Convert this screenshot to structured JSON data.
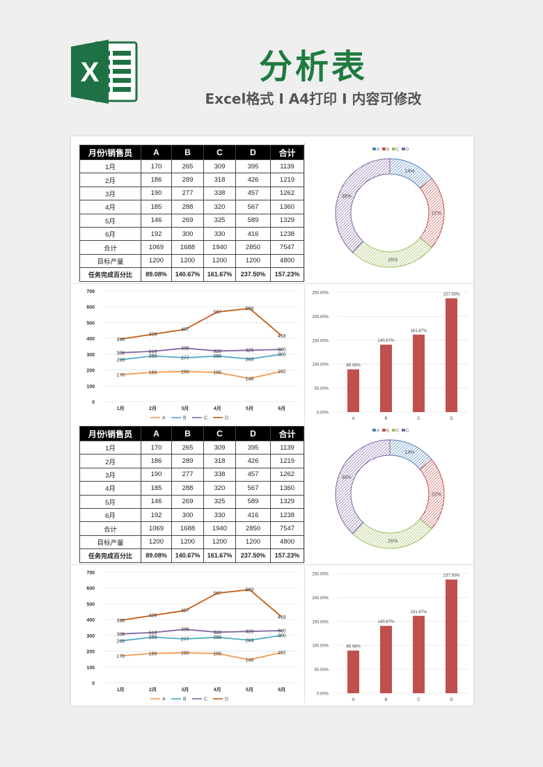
{
  "header": {
    "title": "分析表",
    "subtitle": "Excel格式 I A4打印 I 内容可修改",
    "logo_letter": "X",
    "accent": "#1f7a3e"
  },
  "table": {
    "columns": [
      "月份\\销售员",
      "A",
      "B",
      "C",
      "D",
      "合计"
    ],
    "rows": [
      [
        "1月",
        "170",
        "265",
        "309",
        "395",
        "1139"
      ],
      [
        "2月",
        "186",
        "289",
        "318",
        "426",
        "1219"
      ],
      [
        "3月",
        "190",
        "277",
        "338",
        "457",
        "1262"
      ],
      [
        "4月",
        "185",
        "288",
        "320",
        "567",
        "1360"
      ],
      [
        "5月",
        "146",
        "269",
        "325",
        "589",
        "1329"
      ],
      [
        "6月",
        "192",
        "300",
        "330",
        "416",
        "1238"
      ],
      [
        "合计",
        "1069",
        "1688",
        "1940",
        "2850",
        "7547"
      ],
      [
        "目标产量",
        "1200",
        "1200",
        "1200",
        "1200",
        "4800"
      ],
      [
        "任务完成百分比",
        "89.08%",
        "140.67%",
        "161.67%",
        "237.50%",
        "157.23%"
      ]
    ]
  },
  "chart_data": [
    {
      "type": "pie",
      "variant": "donut",
      "categories": [
        "A",
        "B",
        "C",
        "D"
      ],
      "values": [
        14,
        22,
        26,
        38
      ],
      "labels": [
        "14%",
        "22%",
        "26%",
        "38%"
      ],
      "colors": [
        "#4f81bd",
        "#c0504d",
        "#9bbb59",
        "#8064a2"
      ],
      "legend": "top"
    },
    {
      "type": "line",
      "categories": [
        "1月",
        "2月",
        "3月",
        "4月",
        "5月",
        "6月"
      ],
      "series": [
        {
          "name": "A",
          "values": [
            170,
            186,
            190,
            185,
            146,
            192
          ],
          "color": "#f79646"
        },
        {
          "name": "B",
          "values": [
            265,
            289,
            277,
            288,
            269,
            300
          ],
          "color": "#4bacc6"
        },
        {
          "name": "C",
          "values": [
            309,
            318,
            338,
            320,
            325,
            330
          ],
          "color": "#8064a2"
        },
        {
          "name": "D",
          "values": [
            395,
            426,
            457,
            567,
            589,
            416
          ],
          "color": "#c55a11"
        }
      ],
      "ylim": [
        0,
        700
      ],
      "yticks": [
        "0",
        "100",
        "200",
        "300",
        "400",
        "500",
        "600",
        "700"
      ],
      "legend": "bottom"
    },
    {
      "type": "bar",
      "categories": [
        "A",
        "B",
        "C",
        "D"
      ],
      "values": [
        89.08,
        140.67,
        161.67,
        237.5
      ],
      "labels": [
        "89.08%",
        "140.67%",
        "161.67%",
        "237.50%"
      ],
      "ylim": [
        0,
        250
      ],
      "yticks": [
        "0.00%",
        "50.00%",
        "100.00%",
        "150.00%",
        "200.00%",
        "250.00%"
      ],
      "color": "#c0504d"
    }
  ]
}
